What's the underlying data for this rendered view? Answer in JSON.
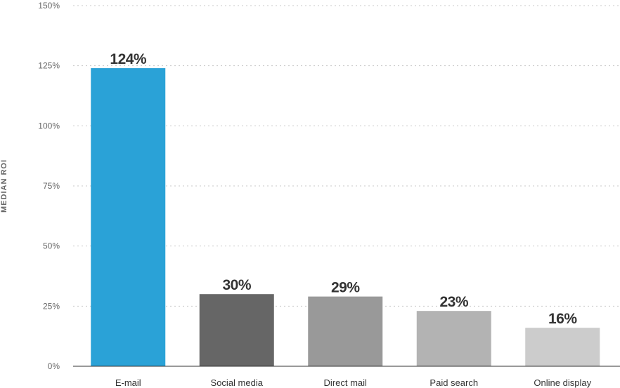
{
  "chart_data": {
    "type": "bar",
    "title": "",
    "xlabel": "",
    "ylabel": "MEDIAN ROI",
    "categories": [
      "E-mail",
      "Social media",
      "Direct mail",
      "Paid search",
      "Online display"
    ],
    "values": [
      124,
      30,
      29,
      23,
      16
    ],
    "value_labels": [
      "124%",
      "30%",
      "29%",
      "23%",
      "16%"
    ],
    "bar_colors": [
      "#2aa2d7",
      "#666666",
      "#999999",
      "#b3b3b3",
      "#cccccc"
    ],
    "ylim": [
      0,
      150
    ],
    "yticks": [
      0,
      25,
      50,
      75,
      100,
      125,
      150
    ],
    "ytick_labels": [
      "0%",
      "25%",
      "50%",
      "75%",
      "100%",
      "125%",
      "150%"
    ],
    "grid": true,
    "grid_style": "dotted",
    "legend": "none"
  }
}
